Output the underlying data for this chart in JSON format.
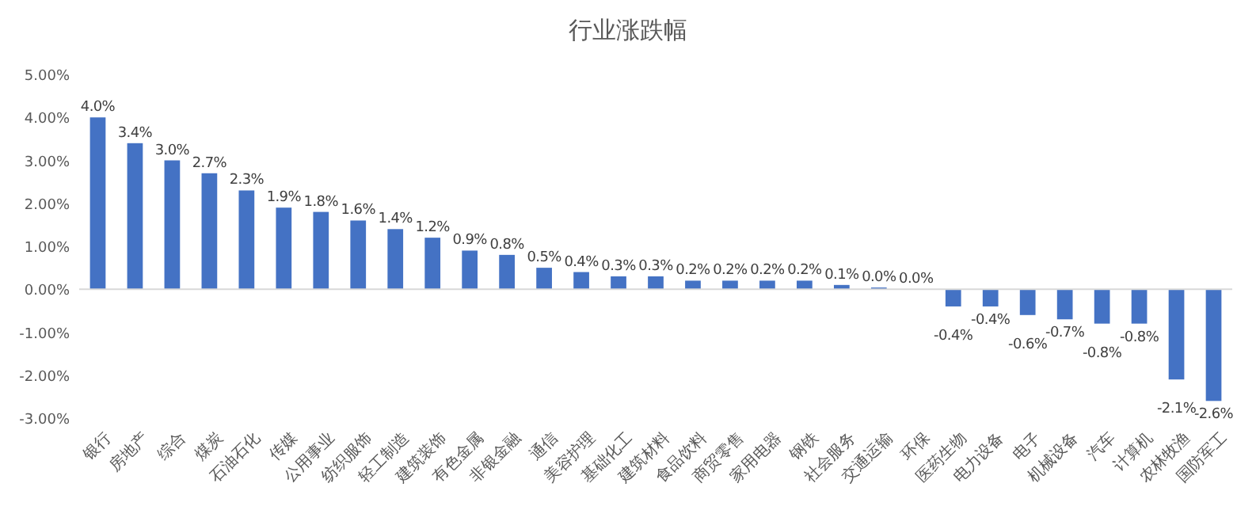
{
  "chart_data": {
    "type": "bar",
    "title": "行业涨跌幅",
    "categories": [
      "银行",
      "房地产",
      "综合",
      "煤炭",
      "石油石化",
      "传媒",
      "公用事业",
      "纺织服饰",
      "轻工制造",
      "建筑装饰",
      "有色金属",
      "非银金融",
      "通信",
      "美容护理",
      "基础化工",
      "建筑材料",
      "食品饮料",
      "商贸零售",
      "家用电器",
      "钢铁",
      "社会服务",
      "交通运输",
      "环保",
      "医药生物",
      "电力设备",
      "电子",
      "机械设备",
      "汽车",
      "计算机",
      "农林牧渔",
      "国防军工"
    ],
    "values": [
      4.0,
      3.4,
      3.0,
      2.7,
      2.3,
      1.9,
      1.8,
      1.6,
      1.4,
      1.2,
      0.9,
      0.8,
      0.5,
      0.4,
      0.3,
      0.3,
      0.2,
      0.2,
      0.2,
      0.2,
      0.1,
      0.04,
      0.0,
      -0.4,
      -0.4,
      -0.6,
      -0.7,
      -0.8,
      -0.8,
      -2.1,
      -2.6
    ],
    "value_labels": [
      "4.0%",
      "3.4%",
      "3.0%",
      "2.7%",
      "2.3%",
      "1.9%",
      "1.8%",
      "1.6%",
      "1.4%",
      "1.2%",
      "0.9%",
      "0.8%",
      "0.5%",
      "0.4%",
      "0.3%",
      "0.3%",
      "0.2%",
      "0.2%",
      "0.2%",
      "0.2%",
      "0.1%",
      "0.0%",
      "0.0%",
      "-0.4%",
      "-0.4%",
      "-0.6%",
      "-0.7%",
      "-0.8%",
      "-0.8%",
      "-2.1%",
      "-2.6%"
    ],
    "color": "#4472c4",
    "ylim": [
      -3,
      5
    ],
    "yticks": [
      {
        "value": -3,
        "label": "-3.00%"
      },
      {
        "value": -2,
        "label": "-2.00%"
      },
      {
        "value": -1,
        "label": "-1.00%"
      },
      {
        "value": 0,
        "label": "0.00%"
      },
      {
        "value": 1,
        "label": "1.00%"
      },
      {
        "value": 2,
        "label": "2.00%"
      },
      {
        "value": 3,
        "label": "3.00%"
      },
      {
        "value": 4,
        "label": "4.00%"
      },
      {
        "value": 5,
        "label": "5.00%"
      }
    ]
  }
}
